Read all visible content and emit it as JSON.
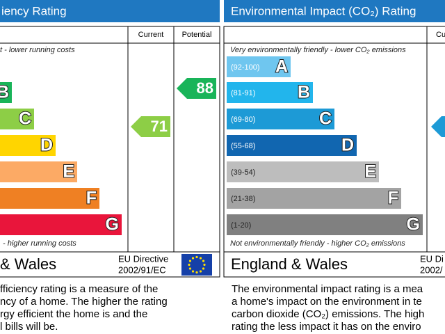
{
  "left": {
    "title": "iency Rating",
    "col_current": "Current",
    "col_potential": "Potential",
    "top_note": "t - lower running costs",
    "bottom_note": "- higher running costs",
    "bands": [
      "B",
      "C",
      "D",
      "E",
      "F",
      "G"
    ],
    "band_colors": [
      "#19b459",
      "#8dce46",
      "#ffd500",
      "#fcaa65",
      "#ef8023",
      "#e9153b"
    ],
    "current": "71",
    "potential": "88",
    "region": "& Wales",
    "directive": [
      "EU Directive",
      "2002/91/EC"
    ],
    "description": [
      "fficiency rating is a measure of the",
      "ncy of a home. The higher the rating",
      "rgy efficient the home is and the",
      "l bills will be."
    ]
  },
  "right": {
    "title": "Environmental Impact (CO₂) Rating",
    "col_current": "Cu",
    "top_note": "Very environmentally friendly - lower CO₂ emissions",
    "bottom_note": "Not environmentally friendly - higher CO₂ emissions",
    "bands": [
      "A",
      "B",
      "C",
      "D",
      "E",
      "F",
      "G"
    ],
    "ranges": [
      "(92-100)",
      "(81-91)",
      "(69-80)",
      "(55-68)",
      "(39-54)",
      "(21-38)",
      "(1-20)"
    ],
    "band_colors": [
      "#6fc6ef",
      "#22b5ec",
      "#1d9ad6",
      "#1166b0",
      "#bdbdbd",
      "#a3a3a3",
      "#808080"
    ],
    "region": "England & Wales",
    "directive": [
      "EU Di",
      "2002/"
    ],
    "description": [
      "The environmental impact rating is a mea",
      "a home's impact on the environment in te",
      "carbon dioxide (CO₂) emissions. The high",
      "rating the less impact it has on the enviro"
    ]
  }
}
